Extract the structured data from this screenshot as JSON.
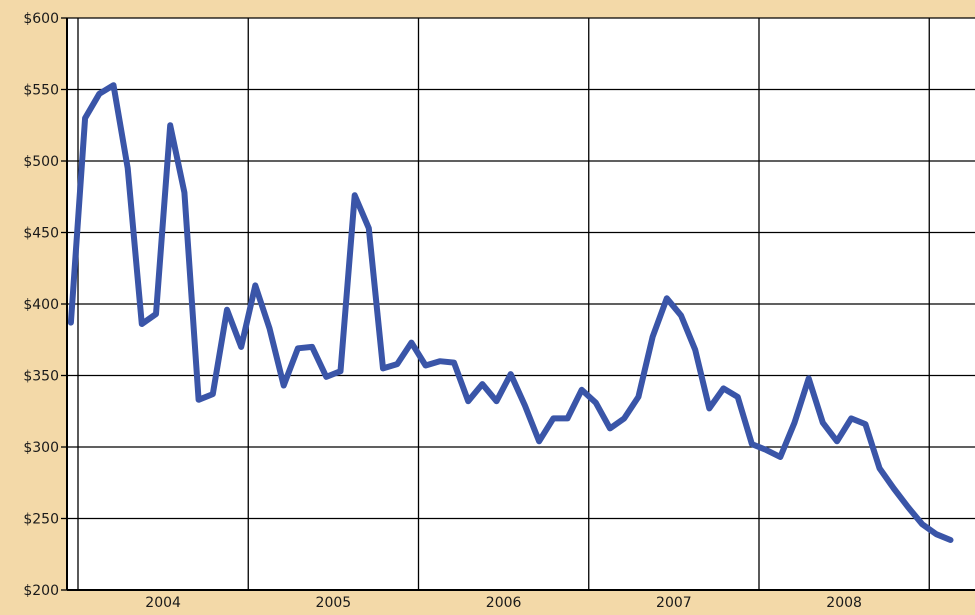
{
  "chart_data": {
    "type": "line",
    "title": "",
    "xlabel": "",
    "ylabel": "",
    "ylim": [
      200,
      600
    ],
    "yticks": [
      200,
      250,
      300,
      350,
      400,
      450,
      500,
      550,
      600
    ],
    "ytick_labels": [
      "$200",
      "$250",
      "$300",
      "$350",
      "$400",
      "$450",
      "$500",
      "$550",
      "$600"
    ],
    "xlim": [
      0,
      64
    ],
    "year_boundaries": [
      0,
      12,
      24,
      36,
      48,
      60
    ],
    "x_categories": [
      {
        "label": "2004",
        "center": 6
      },
      {
        "label": "2005",
        "center": 18
      },
      {
        "label": "2006",
        "center": 30
      },
      {
        "label": "2007",
        "center": 42
      },
      {
        "label": "2008",
        "center": 54
      }
    ],
    "grid": true,
    "legend": "none",
    "series": [
      {
        "color": "#3a55a8",
        "x": [
          -0.5,
          0.5,
          1.5,
          2.5,
          3.5,
          4.5,
          5.5,
          6.5,
          7.5,
          8.5,
          9.5,
          10.5,
          11.5,
          12.5,
          13.5,
          14.5,
          15.5,
          16.5,
          17.5,
          18.5,
          19.5,
          20.5,
          21.5,
          22.5,
          23.5,
          24.5,
          25.5,
          26.5,
          27.5,
          28.5,
          29.5,
          30.5,
          31.5,
          32.5,
          33.5,
          34.5,
          35.5,
          36.5,
          37.5,
          38.5,
          39.5,
          40.5,
          41.5,
          42.5,
          43.5,
          44.5,
          45.5,
          46.5,
          47.5,
          48.5,
          49.5,
          50.5,
          51.5,
          52.5,
          53.5,
          54.5,
          55.5,
          56.5,
          57.5,
          58.5,
          59.5,
          60.5,
          61.5
        ],
        "y": [
          387,
          530,
          547,
          553,
          495,
          386,
          393,
          525,
          478,
          333,
          337,
          396,
          370,
          413,
          383,
          343,
          369,
          370,
          349,
          353,
          476,
          453,
          355,
          358,
          373,
          357,
          360,
          359,
          332,
          344,
          332,
          351,
          329,
          304,
          320,
          320,
          340,
          331,
          313,
          320,
          335,
          377,
          404,
          392,
          368,
          327,
          341,
          335,
          302,
          298,
          293,
          317,
          348,
          317,
          304,
          320,
          316,
          285,
          271,
          258,
          246,
          239,
          235
        ]
      }
    ]
  }
}
